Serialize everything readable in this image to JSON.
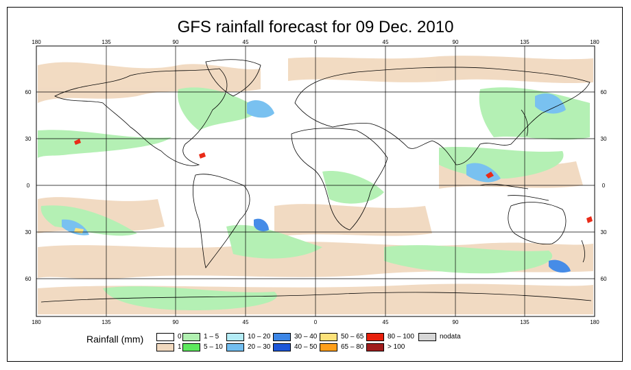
{
  "title": "GFS rainfall forecast for 09 Dec. 2010",
  "axes": {
    "lon_ticks_top": [
      "180",
      "135",
      "90",
      "45",
      "0",
      "45",
      "90",
      "135",
      "180"
    ],
    "lon_ticks_bottom": [
      "180",
      "135",
      "90",
      "45",
      "0",
      "45",
      "90",
      "135",
      "180"
    ],
    "lat_ticks_left": [
      "60",
      "30",
      "0",
      "30",
      "60"
    ],
    "lat_ticks_right": [
      "60",
      "30",
      "0",
      "30",
      "60"
    ]
  },
  "legend": {
    "title": "Rainfall (mm)",
    "items": [
      {
        "label": "0",
        "color": "#ffffff"
      },
      {
        "label": "1",
        "color": "#f1d9bf"
      },
      {
        "label": "1 – 5",
        "color": "#b0f0b0"
      },
      {
        "label": "5 – 10",
        "color": "#5de85d"
      },
      {
        "label": "10 – 20",
        "color": "#b4ecf6"
      },
      {
        "label": "20 – 30",
        "color": "#72bef0"
      },
      {
        "label": "30 – 40",
        "color": "#3d86e6"
      },
      {
        "label": "40 – 50",
        "color": "#1c56d8"
      },
      {
        "label": "50 – 65",
        "color": "#fde27a"
      },
      {
        "label": "65 – 80",
        "color": "#ff9f1a"
      },
      {
        "label": "80 – 100",
        "color": "#e8200c"
      },
      {
        "label": "> 100",
        "color": "#a01d1d"
      },
      {
        "label": "nodata",
        "color": "#d6d6d6"
      }
    ]
  },
  "colors": {
    "land_border": "#000000",
    "grid": "#000000",
    "ocean": "#ffffff"
  }
}
